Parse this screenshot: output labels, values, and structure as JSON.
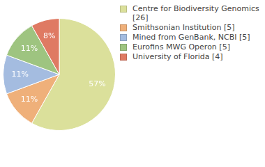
{
  "chart_data": {
    "type": "pie",
    "categories": [
      "Centre for Biodiversity Genomics [26]",
      "Smithsonian Institution [5]",
      "Mined from GenBank, NCBI [5]",
      "Eurofins MWG Operon [5]",
      "University of Florida [4]"
    ],
    "values": [
      57,
      11,
      11,
      11,
      8
    ],
    "value_labels": [
      "57%",
      "11%",
      "11%",
      "11%",
      "8%"
    ],
    "colors": [
      "#dbe09b",
      "#efb07a",
      "#a4bce0",
      "#9ec480",
      "#df7a63"
    ],
    "data_labels": true,
    "legend": "right"
  }
}
